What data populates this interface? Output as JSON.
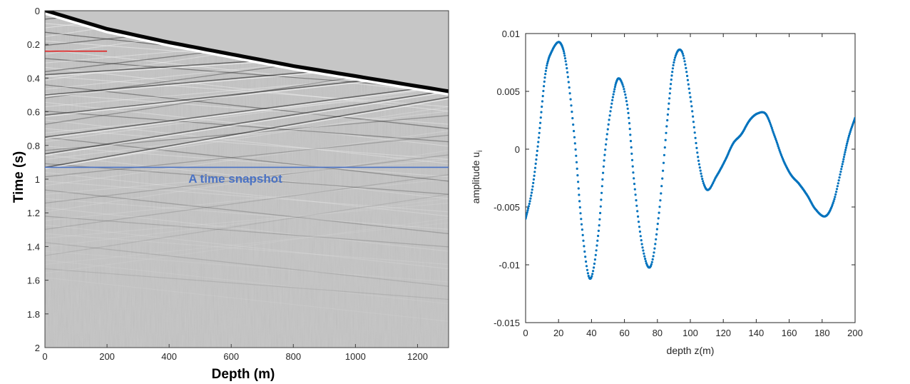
{
  "chart_data": [
    {
      "type": "heatmap",
      "xlabel": "Depth (m)",
      "ylabel": "Time (s)",
      "xlim": [
        0,
        1300
      ],
      "ylim": [
        2,
        0
      ],
      "xticks": [
        0,
        200,
        400,
        600,
        800,
        1000,
        1200
      ],
      "yticks": [
        0,
        0.2,
        0.4,
        0.6,
        0.8,
        1,
        1.2,
        1.4,
        1.6,
        1.8,
        2
      ],
      "ytick_labels": [
        "0",
        "0.2",
        "0.4",
        "0.6",
        "0.8",
        "1",
        "1.2",
        "1.4",
        "1.6",
        "1.8",
        "2"
      ],
      "colormap": "grayscale",
      "first_arrival": {
        "depth": [
          0,
          200,
          400,
          600,
          800,
          1000,
          1200,
          1300
        ],
        "time": [
          0.0,
          0.11,
          0.19,
          0.26,
          0.33,
          0.39,
          0.45,
          0.48
        ]
      },
      "red_marker": {
        "depth": [
          0,
          200
        ],
        "time": 0.24,
        "color": "#e02020"
      },
      "snapshot_line": {
        "time": 0.93,
        "color": "#4a72c4"
      },
      "annotation": "A time snapshot",
      "annotation_color": "#4a72c4"
    },
    {
      "type": "scatter",
      "xlabel": "depth z(m)",
      "ylabel": "amplitude u",
      "ylabel_subscript": "i",
      "xlim": [
        0,
        200
      ],
      "ylim": [
        -0.015,
        0.01
      ],
      "xticks": [
        0,
        20,
        40,
        60,
        80,
        100,
        120,
        140,
        160,
        180,
        200
      ],
      "yticks": [
        -0.015,
        -0.01,
        -0.005,
        0,
        0.005,
        0.01
      ],
      "ytick_labels": [
        "-0.015",
        "-0.01",
        "-0.005",
        "0",
        "0.005",
        "0.01"
      ],
      "marker_color": "#0072bd",
      "series": [
        {
          "x": [
            0,
            4,
            8,
            12,
            16,
            21,
            25,
            30,
            34,
            39,
            44,
            48,
            53,
            57,
            62,
            66,
            71,
            76,
            81,
            86,
            90,
            95,
            100,
            105,
            110,
            116,
            121,
            126,
            131,
            136,
            141,
            146,
            151,
            156,
            161,
            166,
            171,
            176,
            182,
            187,
            192,
            196,
            200
          ],
          "y": [
            -0.006,
            -0.0035,
            0.001,
            0.0065,
            0.0085,
            0.0092,
            0.007,
            0.0005,
            -0.0065,
            -0.0112,
            -0.0075,
            -0.0005,
            0.0045,
            0.0061,
            0.0035,
            -0.003,
            -0.0085,
            -0.0101,
            -0.0055,
            0.0025,
            0.0075,
            0.0084,
            0.0045,
            -0.001,
            -0.0035,
            -0.0023,
            -0.001,
            0.0005,
            0.0013,
            0.0025,
            0.0031,
            0.003,
            0.0012,
            -0.0008,
            -0.0022,
            -0.003,
            -0.004,
            -0.0052,
            -0.0058,
            -0.0045,
            -0.0015,
            0.001,
            0.0027
          ]
        }
      ]
    }
  ]
}
